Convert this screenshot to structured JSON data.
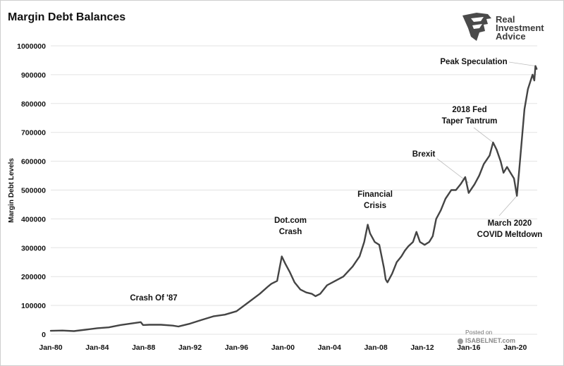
{
  "brand": {
    "line1": "Real",
    "line2": "Investment",
    "line3": "Advice"
  },
  "watermark": {
    "posted": "Posted on",
    "site": "ISABELNET.com"
  },
  "chart_data": {
    "type": "line",
    "title": "Margin Debt Balances",
    "xlabel": "",
    "ylabel": "Margin Debt Levels",
    "ylim": [
      0,
      1000000
    ],
    "xlim": [
      1980.0,
      2021.9
    ],
    "grid": true,
    "yticks": [
      0,
      100000,
      200000,
      300000,
      400000,
      500000,
      600000,
      700000,
      800000,
      900000,
      1000000
    ],
    "ytick_labels": [
      "0",
      "100000",
      "200000",
      "300000",
      "400000",
      "500000",
      "600000",
      "700000",
      "800000",
      "900000",
      "1000000"
    ],
    "xticks": [
      1980,
      1984,
      1988,
      1992,
      1996,
      2000,
      2004,
      2008,
      2012,
      2016,
      2020
    ],
    "xtick_labels": [
      "Jan-80",
      "Jan-84",
      "Jan-88",
      "Jan-92",
      "Jan-96",
      "Jan-00",
      "Jan-04",
      "Jan-08",
      "Jan-12",
      "Jan-16",
      "Jan-20"
    ],
    "series": [
      {
        "name": "Margin Debt Levels",
        "color": "#444444",
        "x": [
          1980.0,
          1981.0,
          1982.0,
          1983.0,
          1984.0,
          1985.0,
          1986.0,
          1987.0,
          1987.75,
          1987.95,
          1988.5,
          1989.5,
          1990.5,
          1991.0,
          1992.0,
          1993.0,
          1994.0,
          1995.0,
          1996.0,
          1997.0,
          1998.0,
          1998.7,
          1999.0,
          1999.5,
          1999.9,
          2000.2,
          2000.6,
          2001.0,
          2001.5,
          2002.0,
          2002.5,
          2002.8,
          2003.2,
          2003.8,
          2004.5,
          2005.2,
          2006.0,
          2006.6,
          2007.0,
          2007.3,
          2007.5,
          2007.9,
          2008.3,
          2008.7,
          2008.85,
          2009.0,
          2009.4,
          2009.8,
          2010.2,
          2010.5,
          2010.8,
          2011.2,
          2011.5,
          2011.8,
          2012.2,
          2012.6,
          2012.9,
          2013.2,
          2013.6,
          2014.0,
          2014.5,
          2014.9,
          2015.3,
          2015.7,
          2016.0,
          2016.5,
          2016.9,
          2017.3,
          2017.8,
          2018.1,
          2018.4,
          2018.75,
          2019.0,
          2019.3,
          2019.6,
          2019.9,
          2020.15,
          2020.35,
          2020.8,
          2021.1,
          2021.5,
          2021.65,
          2021.75,
          2021.85
        ],
        "values": [
          12000,
          13000,
          11000,
          16000,
          21000,
          24000,
          32000,
          38000,
          42000,
          32000,
          33000,
          33000,
          30000,
          27000,
          37000,
          50000,
          62000,
          68000,
          80000,
          110000,
          140000,
          165000,
          175000,
          185000,
          270000,
          245000,
          215000,
          180000,
          155000,
          145000,
          140000,
          132000,
          140000,
          170000,
          185000,
          200000,
          235000,
          270000,
          320000,
          380000,
          350000,
          320000,
          310000,
          230000,
          190000,
          180000,
          210000,
          250000,
          270000,
          290000,
          305000,
          320000,
          355000,
          320000,
          310000,
          320000,
          340000,
          400000,
          430000,
          470000,
          500000,
          500000,
          520000,
          545000,
          490000,
          520000,
          550000,
          590000,
          620000,
          665000,
          640000,
          600000,
          560000,
          580000,
          560000,
          540000,
          480000,
          570000,
          780000,
          850000,
          900000,
          880000,
          930000,
          920000
        ]
      }
    ],
    "annotations": [
      {
        "label": "Crash Of '87",
        "lines": [
          "Crash Of '87"
        ],
        "x": 1987.95,
        "y": 42000
      },
      {
        "label": "Dot.com Crash",
        "lines": [
          "Dot.com",
          "Crash"
        ],
        "x": 2000.0,
        "y": 270000
      },
      {
        "label": "Financial Crisis",
        "lines": [
          "Financial",
          "Crisis"
        ],
        "x": 2007.3,
        "y": 380000
      },
      {
        "label": "Brexit",
        "lines": [
          "Brexit"
        ],
        "x": 2016.0,
        "y": 525000
      },
      {
        "label": "2018 Fed Taper Tantrum",
        "lines": [
          "2018 Fed",
          "Taper Tantrum"
        ],
        "x": 2018.1,
        "y": 665000
      },
      {
        "label": "March 2020 COVID Meltdown",
        "lines": [
          "March 2020",
          "COVID Meltdown"
        ],
        "x": 2020.15,
        "y": 480000
      },
      {
        "label": "Peak Speculation",
        "lines": [
          "Peak Speculation"
        ],
        "x": 2021.75,
        "y": 930000
      }
    ]
  }
}
